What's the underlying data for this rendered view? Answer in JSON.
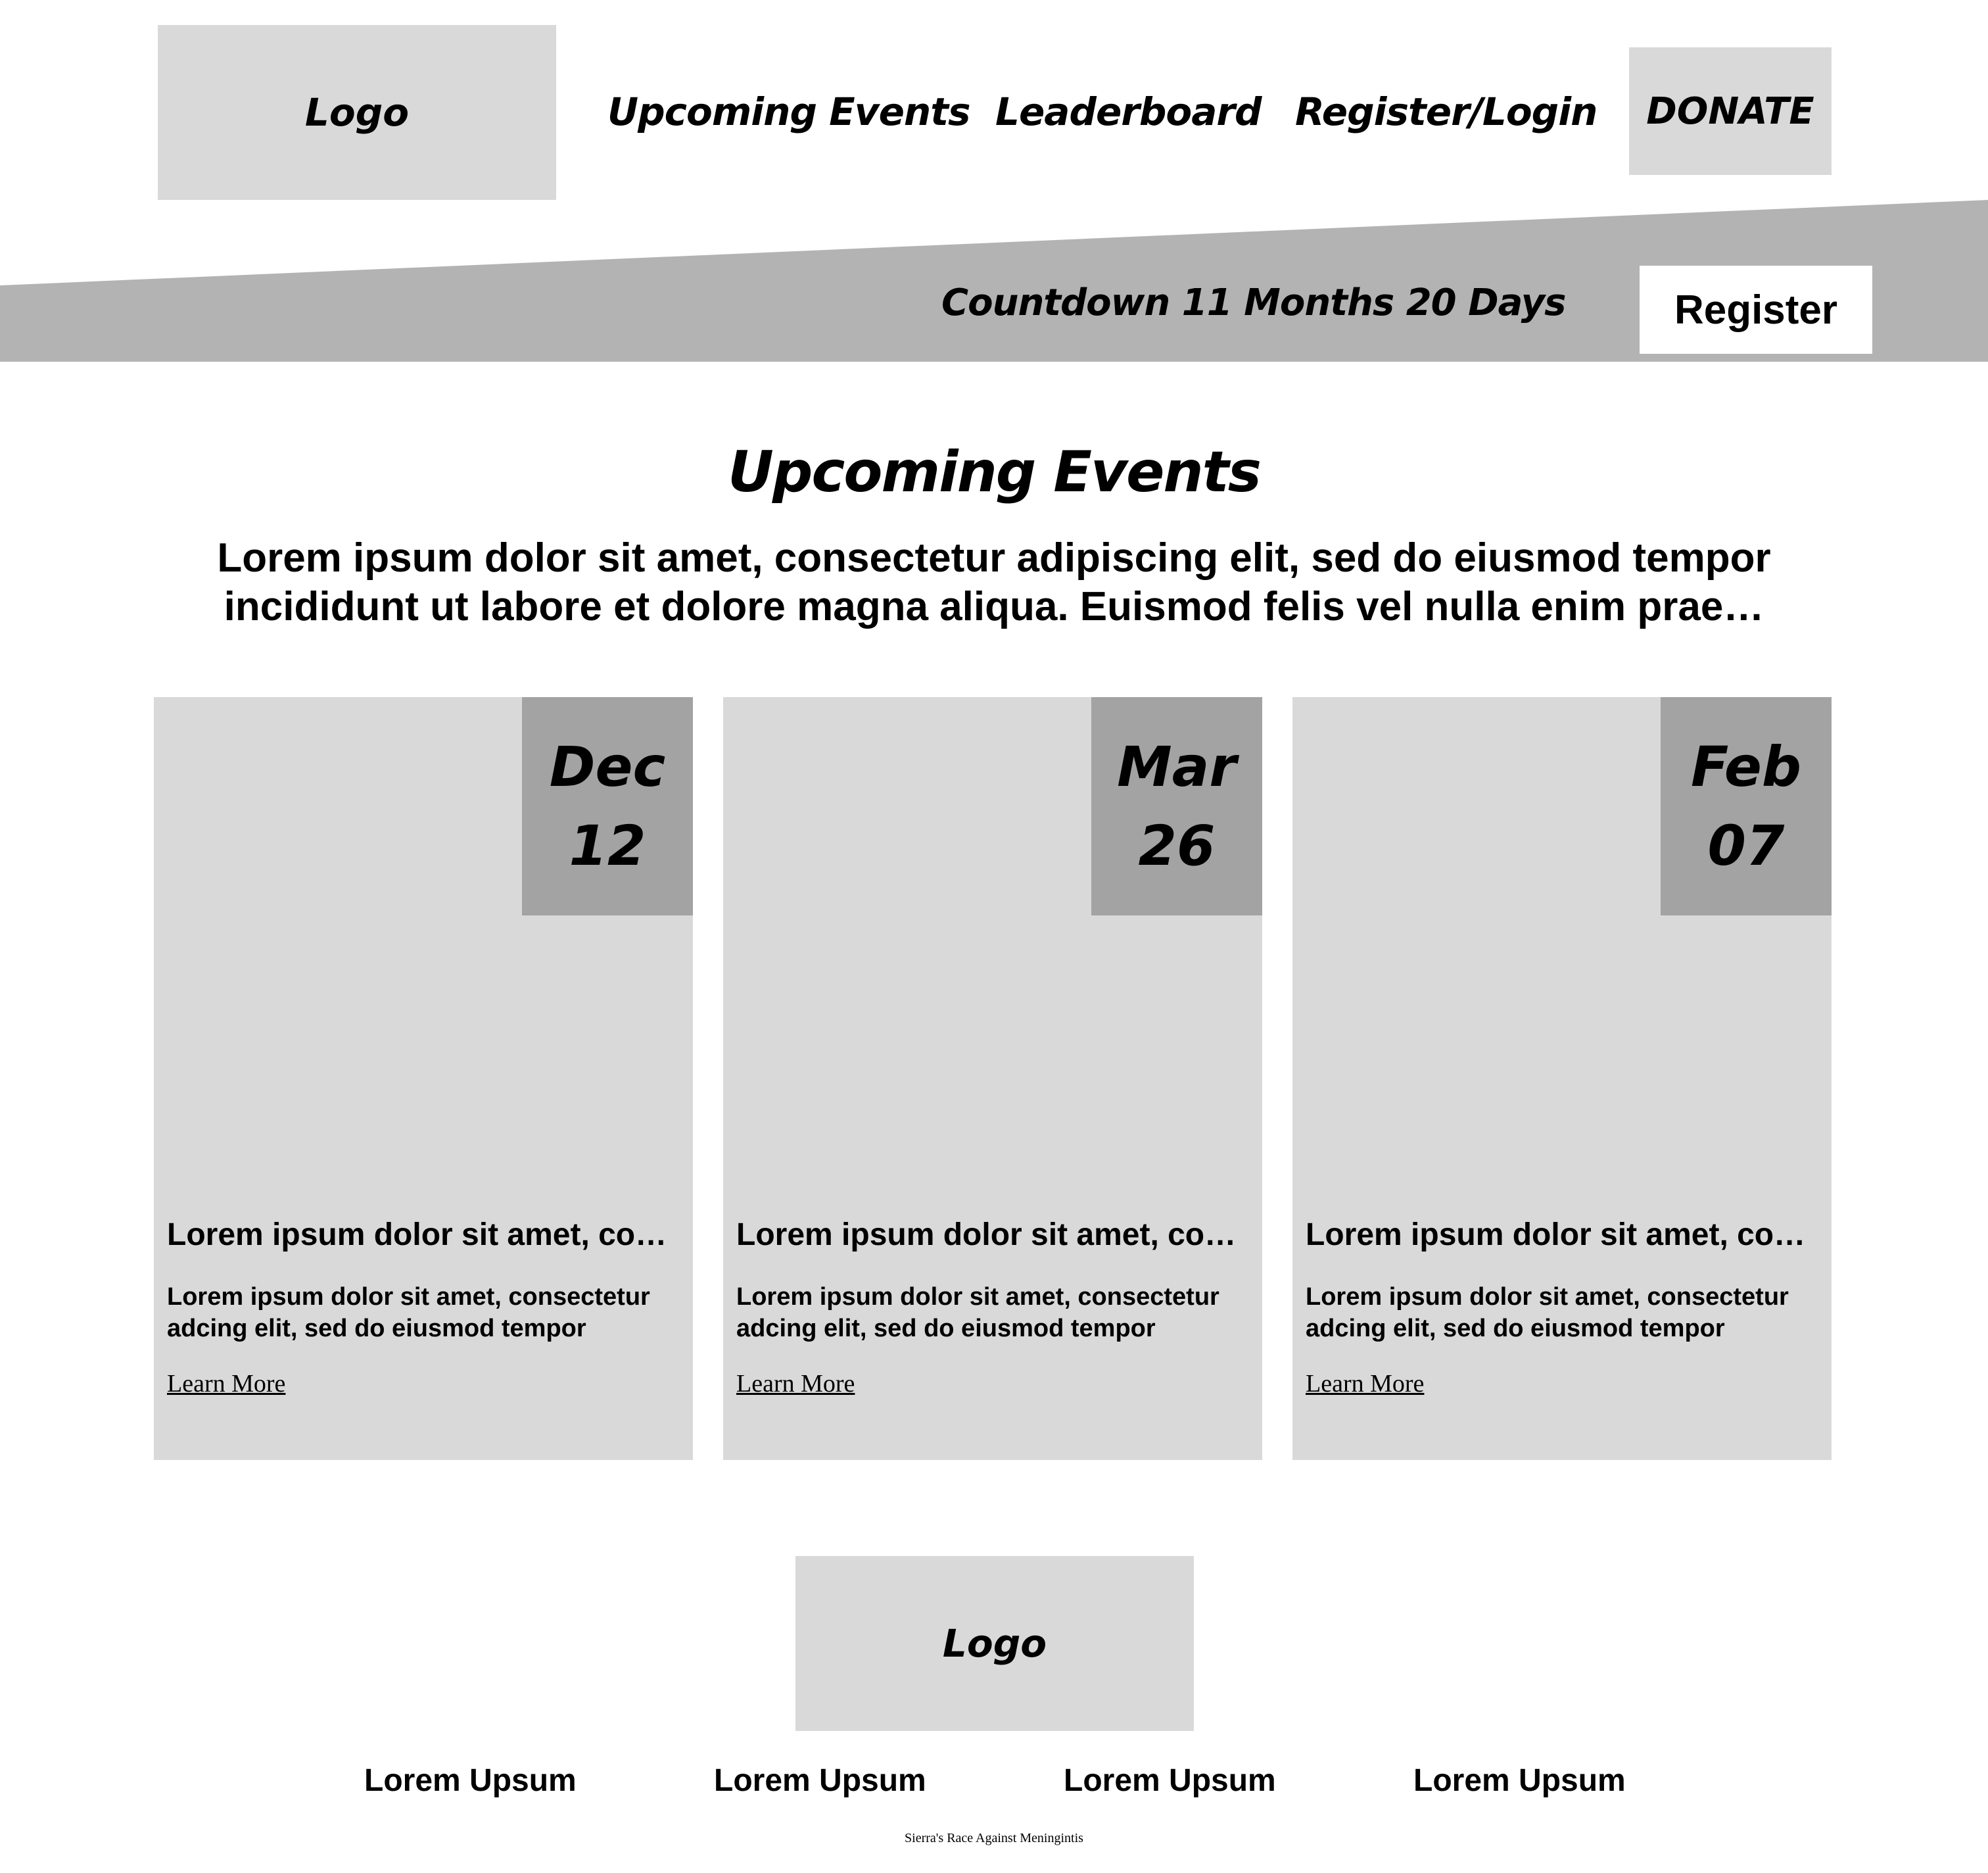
{
  "header": {
    "logo_label": "Logo",
    "nav": [
      {
        "label": "Upcoming Events"
      },
      {
        "label": "Leaderboard"
      },
      {
        "label": "Register/Login"
      }
    ],
    "donate_label": "DONATE"
  },
  "banner": {
    "countdown": "Countdown 11 Months 20 Days",
    "register_label": "Register"
  },
  "events_section": {
    "title": "Upcoming Events",
    "intro": "Lorem ipsum dolor sit amet, consectetur adipiscing elit, sed do eiusmod tempor incididunt ut labore et dolore magna aliqua. Euismod felis vel nulla enim prae…"
  },
  "events": [
    {
      "month": "Dec",
      "day": "12",
      "title": "Lorem ipsum dolor sit amet, co…",
      "description": "Lorem ipsum dolor sit amet, consectetur adcing elit, sed do eiusmod tempor",
      "link": "Learn More"
    },
    {
      "month": "Mar",
      "day": "26",
      "title": "Lorem ipsum dolor sit amet, co…",
      "description": "Lorem ipsum dolor sit amet, consectetur adcing elit, sed do eiusmod tempor",
      "link": "Learn More"
    },
    {
      "month": "Feb",
      "day": "07",
      "title": "Lorem ipsum dolor sit amet, co…",
      "description": "Lorem ipsum dolor sit amet, consectetur adcing elit, sed do eiusmod tempor",
      "link": "Learn More"
    }
  ],
  "footer": {
    "logo_label": "Logo",
    "links": [
      {
        "label": "Lorem Upsum"
      },
      {
        "label": "Lorem Upsum"
      },
      {
        "label": "Lorem Upsum"
      },
      {
        "label": "Lorem Upsum"
      }
    ],
    "caption": "Sierra's Race Against Meningintis"
  },
  "colors": {
    "placeholder_gray": "#d9d9d9",
    "banner_gray": "#b3b3b3",
    "date_badge_gray": "#a3a3a3",
    "text": "#000000",
    "background": "#ffffff"
  }
}
